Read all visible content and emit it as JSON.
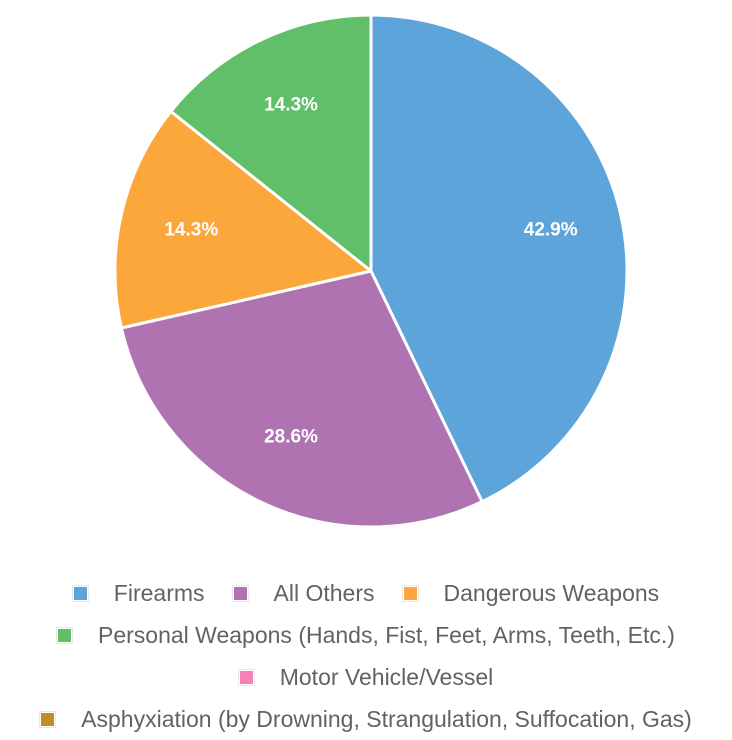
{
  "colors": {
    "firearms": "#5ca4da",
    "all_others": "#b073b1",
    "dangerous_weapons": "#fba73b",
    "personal_weapons": "#62bf69",
    "motor_vehicle": "#f383b4",
    "asphyxiation": "#b89228"
  },
  "chart_data": {
    "type": "pie",
    "title": "",
    "slices": [
      {
        "name": "Firearms",
        "value": 42.9,
        "label": "42.9%",
        "color": "#5ca4da"
      },
      {
        "name": "All Others",
        "value": 28.6,
        "label": "28.6%",
        "color": "#b073b1"
      },
      {
        "name": "Dangerous Weapons",
        "value": 14.3,
        "label": "14.3%",
        "color": "#fba73b"
      },
      {
        "name": "Personal Weapons (Hands, Fist, Feet, Arms, Teeth, Etc.)",
        "value": 14.3,
        "label": "14.3%",
        "color": "#62bf69"
      },
      {
        "name": "Motor Vehicle/Vessel",
        "value": 0,
        "label": "",
        "color": "#f383b4"
      },
      {
        "name": "Asphyxiation (by Drowning, Strangulation, Suffocation, Gas)",
        "value": 0,
        "label": "",
        "color": "#b89228"
      }
    ],
    "legend_position": "bottom"
  },
  "legend": {
    "rows": [
      [
        {
          "label": "Firearms",
          "color": "#5ca4da"
        },
        {
          "label": "All Others",
          "color": "#b073b1"
        },
        {
          "label": "Dangerous Weapons",
          "color": "#fba73b"
        }
      ],
      [
        {
          "label": "Personal Weapons (Hands, Fist, Feet, Arms, Teeth, Etc.)",
          "color": "#62bf69"
        }
      ],
      [
        {
          "label": "Motor Vehicle/Vessel",
          "color": "#f383b4"
        }
      ],
      [
        {
          "label": "Asphyxiation (by Drowning, Strangulation, Suffocation, Gas)",
          "color": "#b89228"
        }
      ]
    ]
  }
}
